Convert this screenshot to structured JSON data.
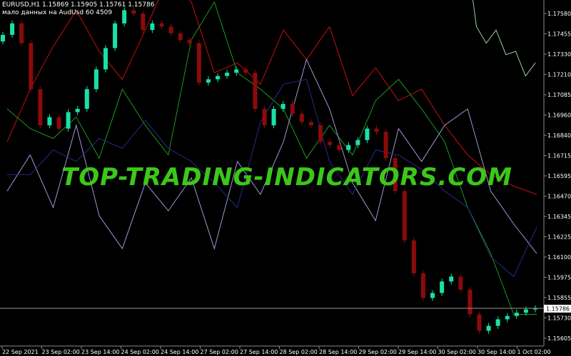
{
  "header": {
    "line1": "EURUSD,H1  1.15869 1.15905 1.15761 1.15786",
    "line2": "мало данных на AudUsd 60 4509"
  },
  "watermark": "TOP-TRADING-INDICATORS.COM",
  "colors": {
    "background": "#000000",
    "bull": "#19e0a6",
    "bear": "#8a0b0b",
    "line_red": "#c41010",
    "line_green": "#1c9a1c",
    "line_lavender": "#9a9ad6",
    "line_navy": "#2a2a8a",
    "line_sage": "#9ecf9e",
    "axis": "#8a8a8a",
    "grid": "#2a2a2a"
  },
  "chart_data": {
    "type": "candlestick",
    "symbol": "EURUSD",
    "timeframe": "H1",
    "ohlc": {
      "open": 1.15869,
      "high": 1.15905,
      "low": 1.15761,
      "close": 1.15786
    },
    "current_price": "1.15786",
    "ylim": [
      1.1553,
      1.1585
    ],
    "y_ticks": [
      "1.17580",
      "1.17455",
      "1.17330",
      "1.17210",
      "1.17085",
      "1.16960",
      "1.16840",
      "1.16715",
      "1.16595",
      "1.16470",
      "1.16345",
      "1.16225",
      "1.16100",
      "1.15975",
      "1.15855",
      "1.15730",
      "1.15605"
    ],
    "x_ticks": [
      "22 Sep 2021",
      "23 Sep 02:00",
      "23 Sep 14:00",
      "24 Sep 02:00",
      "24 Sep 14:00",
      "27 Sep 02:00",
      "27 Sep 14:00",
      "28 Sep 02:00",
      "28 Sep 14:00",
      "29 Sep 02:00",
      "29 Sep 14:00",
      "30 Sep 02:00",
      "30 Sep 14:00",
      "1 Oct 02:00"
    ],
    "series": [
      {
        "kind": "candles",
        "close": [
          1.1745,
          1.1752,
          1.174,
          1.1712,
          1.169,
          1.1695,
          1.1688,
          1.1698,
          1.17,
          1.1712,
          1.1724,
          1.1737,
          1.1752,
          1.176,
          1.1758,
          1.1748,
          1.1752,
          1.175,
          1.1746,
          1.1742,
          1.174,
          1.1716,
          1.1718,
          1.172,
          1.1722,
          1.1724,
          1.1722,
          1.17,
          1.169,
          1.17,
          1.1703,
          1.1697,
          1.1692,
          1.169,
          1.168,
          1.1678,
          1.1675,
          1.1678,
          1.1681,
          1.1688,
          1.1686,
          1.167,
          1.165,
          1.162,
          1.16,
          1.1585,
          1.1588,
          1.1595,
          1.1598,
          1.159,
          1.1575,
          1.1565,
          1.1568,
          1.1572,
          1.1574,
          1.1576,
          1.1578,
          1.15786
        ]
      },
      {
        "kind": "line",
        "color_key": "line_red",
        "values": [
          1.168,
          1.1712,
          1.1738,
          1.176,
          1.1735,
          1.1718,
          1.1748,
          1.178,
          1.1765,
          1.1722,
          1.1728,
          1.1715,
          1.1748,
          1.173,
          1.175,
          1.1708,
          1.1725,
          1.1705,
          1.1712,
          1.169,
          1.1672,
          1.166,
          1.1653,
          1.1648
        ]
      },
      {
        "kind": "line",
        "color_key": "line_green",
        "values": [
          1.17,
          1.1688,
          1.1682,
          1.1695,
          1.167,
          1.1712,
          1.169,
          1.1672,
          1.1742,
          1.1765,
          1.1722,
          1.1712,
          1.17,
          1.167,
          1.169,
          1.1672,
          1.1705,
          1.1718,
          1.17,
          1.168,
          1.164,
          1.1612,
          1.1575,
          1.1575
        ]
      },
      {
        "kind": "line",
        "color_key": "line_lavender",
        "values": [
          1.165,
          1.1672,
          1.164,
          1.169,
          1.1635,
          1.1615,
          1.1655,
          1.1638,
          1.1658,
          1.1615,
          1.1668,
          1.1648,
          1.168,
          1.173,
          1.17,
          1.1655,
          1.1632,
          1.1688,
          1.1668,
          1.169,
          1.17,
          1.165,
          1.163,
          1.1612
        ]
      },
      {
        "kind": "line",
        "color_key": "line_navy",
        "values": [
          1.166,
          1.166,
          1.1675,
          1.1668,
          1.1682,
          1.1676,
          1.1693,
          1.1676,
          1.1668,
          1.1655,
          1.164,
          1.1692,
          1.1715,
          1.1718,
          1.1668,
          1.1648,
          1.1675,
          1.1672,
          1.1663,
          1.165,
          1.164,
          1.161,
          1.1598,
          1.1628
        ]
      },
      {
        "kind": "line",
        "color_key": "line_sage",
        "values": [
          1.179,
          1.1795,
          1.175,
          1.174,
          1.1748,
          1.1733,
          1.1735,
          1.172,
          1.1728
        ]
      }
    ],
    "grid": false
  }
}
